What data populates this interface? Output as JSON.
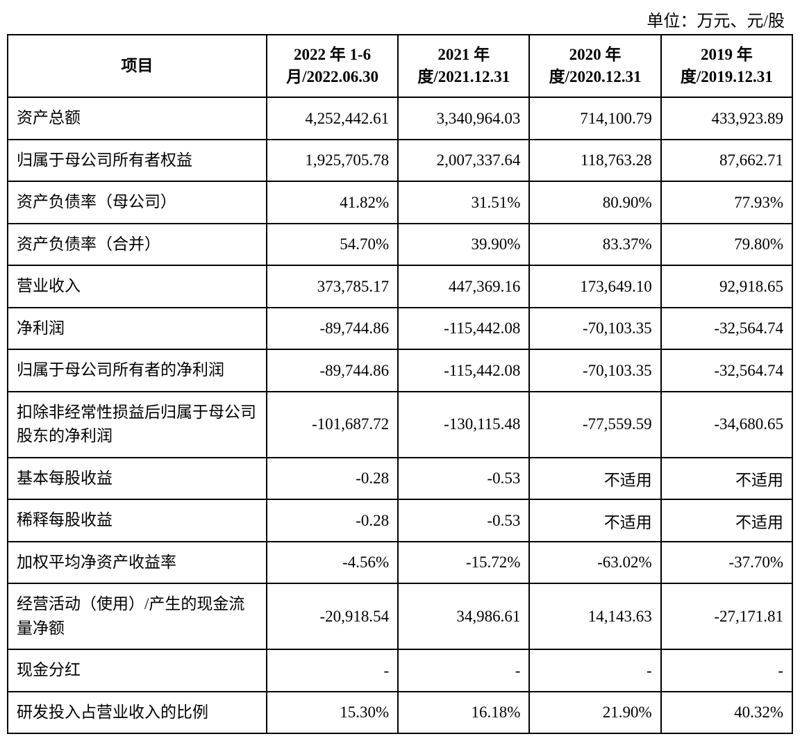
{
  "unit_label": "单位：万元、元/股",
  "table": {
    "type": "table",
    "background_color": "#ffffff",
    "border_color": "#000000",
    "text_color": "#000000",
    "header_fontsize": 23,
    "cell_fontsize": 23,
    "columns": [
      {
        "key": "item",
        "label": "项目",
        "align": "center",
        "width_pct": 33
      },
      {
        "key": "p2022h1",
        "label": "2022 年 1-6 月/2022.06.30",
        "align": "center",
        "width_pct": 16.75
      },
      {
        "key": "p2021",
        "label": "2021 年度/2021.12.31",
        "align": "center",
        "width_pct": 16.75
      },
      {
        "key": "p2020",
        "label": "2020 年度/2020.12.31",
        "align": "center",
        "width_pct": 16.75
      },
      {
        "key": "p2019",
        "label": "2019 年度/2019.12.31",
        "align": "center",
        "width_pct": 16.75
      }
    ],
    "rows": [
      {
        "item": "资产总额",
        "p2022h1": "4,252,442.61",
        "p2021": "3,340,964.03",
        "p2020": "714,100.79",
        "p2019": "433,923.89"
      },
      {
        "item": "归属于母公司所有者权益",
        "p2022h1": "1,925,705.78",
        "p2021": "2,007,337.64",
        "p2020": "118,763.28",
        "p2019": "87,662.71"
      },
      {
        "item": "资产负债率（母公司）",
        "p2022h1": "41.82%",
        "p2021": "31.51%",
        "p2020": "80.90%",
        "p2019": "77.93%"
      },
      {
        "item": "资产负债率（合并）",
        "p2022h1": "54.70%",
        "p2021": "39.90%",
        "p2020": "83.37%",
        "p2019": "79.80%"
      },
      {
        "item": "营业收入",
        "p2022h1": "373,785.17",
        "p2021": "447,369.16",
        "p2020": "173,649.10",
        "p2019": "92,918.65"
      },
      {
        "item": "净利润",
        "p2022h1": "-89,744.86",
        "p2021": "-115,442.08",
        "p2020": "-70,103.35",
        "p2019": "-32,564.74"
      },
      {
        "item": "归属于母公司所有者的净利润",
        "p2022h1": "-89,744.86",
        "p2021": "-115,442.08",
        "p2020": "-70,103.35",
        "p2019": "-32,564.74"
      },
      {
        "item": "扣除非经常性损益后归属于母公司股东的净利润",
        "p2022h1": "-101,687.72",
        "p2021": "-130,115.48",
        "p2020": "-77,559.59",
        "p2019": "-34,680.65"
      },
      {
        "item": "基本每股收益",
        "p2022h1": "-0.28",
        "p2021": "-0.53",
        "p2020": "不适用",
        "p2019": "不适用"
      },
      {
        "item": "稀释每股收益",
        "p2022h1": "-0.28",
        "p2021": "-0.53",
        "p2020": "不适用",
        "p2019": "不适用"
      },
      {
        "item": "加权平均净资产收益率",
        "p2022h1": "-4.56%",
        "p2021": "-15.72%",
        "p2020": "-63.02%",
        "p2019": "-37.70%"
      },
      {
        "item": "经营活动（使用）/产生的现金流量净额",
        "p2022h1": "-20,918.54",
        "p2021": "34,986.61",
        "p2020": "14,143.63",
        "p2019": "-27,171.81"
      },
      {
        "item": "现金分红",
        "p2022h1": "-",
        "p2021": "-",
        "p2020": "-",
        "p2019": "-"
      },
      {
        "item": "研发投入占营业收入的比例",
        "p2022h1": "15.30%",
        "p2021": "16.18%",
        "p2020": "21.90%",
        "p2019": "40.32%"
      }
    ]
  }
}
